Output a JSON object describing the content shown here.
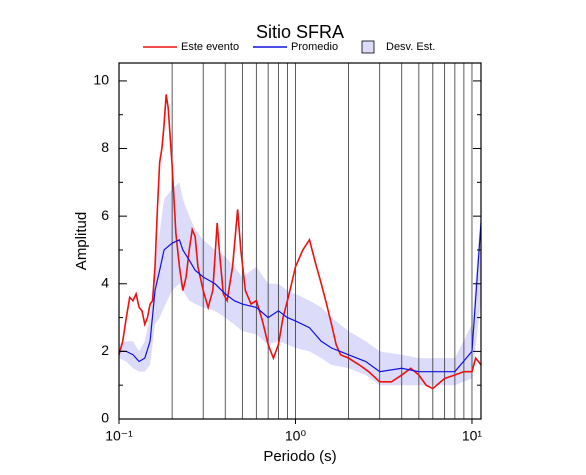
{
  "chart_data": {
    "type": "line",
    "title": "Sitio SFRA",
    "xlabel": "Periodo (s)",
    "ylabel": "Amplitud",
    "xscale": "log",
    "xlim": [
      0.1,
      11.25
    ],
    "ylim": [
      0,
      10.53
    ],
    "xticks": [
      {
        "value": 0.1,
        "label": "10⁻¹"
      },
      {
        "value": 1,
        "label": "10⁰"
      },
      {
        "value": 10,
        "label": "10¹"
      }
    ],
    "xgrid": [
      0.2,
      0.3,
      0.4,
      0.5,
      0.6,
      0.7,
      0.8,
      0.9,
      1,
      2,
      3,
      4,
      5,
      6,
      7,
      8,
      9,
      10
    ],
    "yticks": [
      0,
      2,
      4,
      6,
      8,
      10
    ],
    "yminor": [
      1,
      3,
      5,
      7,
      9
    ],
    "legend": "top",
    "band": {
      "name": "Desv. Est.",
      "color": "#dcdcfa",
      "x": [
        0.1,
        0.11,
        0.12,
        0.13,
        0.14,
        0.15,
        0.16,
        0.17,
        0.18,
        0.2,
        0.22,
        0.23,
        0.25,
        0.27,
        0.3,
        0.35,
        0.4,
        0.45,
        0.5,
        0.6,
        0.7,
        0.8,
        0.9,
        1.0,
        1.2,
        1.4,
        1.6,
        2.0,
        2.5,
        3.0,
        4.0,
        5.0,
        6.0,
        8.0,
        10.0,
        11.25
      ],
      "lower": [
        1.8,
        1.7,
        1.5,
        1.4,
        1.4,
        1.6,
        2.8,
        3.0,
        3.3,
        3.8,
        4.0,
        3.8,
        3.5,
        3.4,
        3.3,
        3.2,
        3.0,
        2.8,
        2.6,
        2.5,
        2.2,
        2.3,
        2.2,
        2.1,
        2.0,
        1.8,
        1.6,
        1.5,
        1.3,
        1.0,
        1.0,
        1.0,
        1.0,
        1.0,
        1.2,
        3.5
      ],
      "upper": [
        2.2,
        2.3,
        2.3,
        2.0,
        2.3,
        3.0,
        4.7,
        5.5,
        6.5,
        6.8,
        7.0,
        6.5,
        6.0,
        5.6,
        5.3,
        5.0,
        4.8,
        4.5,
        4.2,
        4.5,
        4.0,
        4.0,
        3.8,
        3.7,
        3.5,
        3.3,
        3.0,
        2.6,
        2.3,
        2.0,
        1.9,
        1.8,
        1.8,
        1.8,
        2.8,
        6.2
      ]
    },
    "series": [
      {
        "name": "Este evento",
        "color": "#ee1111",
        "x": [
          0.1,
          0.105,
          0.11,
          0.115,
          0.12,
          0.125,
          0.13,
          0.135,
          0.14,
          0.145,
          0.15,
          0.155,
          0.16,
          0.165,
          0.17,
          0.175,
          0.18,
          0.185,
          0.19,
          0.2,
          0.21,
          0.22,
          0.23,
          0.24,
          0.25,
          0.26,
          0.27,
          0.28,
          0.3,
          0.32,
          0.34,
          0.36,
          0.37,
          0.39,
          0.41,
          0.44,
          0.47,
          0.49,
          0.52,
          0.56,
          0.6,
          0.65,
          0.7,
          0.75,
          0.8,
          0.85,
          0.9,
          0.95,
          1.0,
          1.1,
          1.2,
          1.3,
          1.4,
          1.5,
          1.6,
          1.7,
          1.8,
          2.0,
          2.3,
          2.6,
          3.0,
          3.5,
          4.0,
          4.5,
          5.0,
          5.5,
          6.0,
          7.0,
          8.0,
          9.0,
          10.0,
          10.5,
          11.25
        ],
        "values": [
          1.9,
          2.3,
          3.0,
          3.6,
          3.5,
          3.7,
          3.3,
          3.2,
          2.8,
          3.0,
          3.4,
          3.5,
          4.5,
          6.2,
          7.6,
          8.0,
          8.7,
          9.6,
          9.2,
          7.5,
          5.5,
          4.5,
          3.8,
          4.2,
          5.0,
          5.6,
          5.4,
          4.5,
          3.8,
          3.3,
          3.8,
          5.8,
          5.0,
          3.7,
          3.5,
          4.5,
          6.2,
          5.0,
          3.8,
          3.4,
          3.5,
          2.9,
          2.2,
          1.8,
          2.2,
          3.0,
          3.5,
          4.0,
          4.5,
          5.0,
          5.3,
          4.6,
          4.0,
          3.4,
          2.8,
          2.2,
          1.9,
          1.8,
          1.6,
          1.4,
          1.1,
          1.1,
          1.3,
          1.5,
          1.3,
          1.0,
          0.9,
          1.2,
          1.3,
          1.4,
          1.4,
          1.8,
          1.6
        ]
      },
      {
        "name": "Promedio",
        "color": "#1111dd",
        "x": [
          0.1,
          0.11,
          0.12,
          0.13,
          0.14,
          0.15,
          0.16,
          0.17,
          0.18,
          0.2,
          0.22,
          0.23,
          0.25,
          0.27,
          0.3,
          0.35,
          0.4,
          0.45,
          0.5,
          0.6,
          0.7,
          0.8,
          0.9,
          1.0,
          1.2,
          1.4,
          1.6,
          2.0,
          2.5,
          3.0,
          4.0,
          5.0,
          6.0,
          8.0,
          10.0,
          11.25
        ],
        "values": [
          2.0,
          2.0,
          1.9,
          1.7,
          1.8,
          2.3,
          3.8,
          4.4,
          5.0,
          5.2,
          5.3,
          5.0,
          4.7,
          4.4,
          4.2,
          4.0,
          3.7,
          3.5,
          3.4,
          3.3,
          3.0,
          3.2,
          3.0,
          2.9,
          2.7,
          2.3,
          2.1,
          1.9,
          1.7,
          1.4,
          1.5,
          1.4,
          1.4,
          1.4,
          2.0,
          5.8
        ]
      }
    ]
  }
}
